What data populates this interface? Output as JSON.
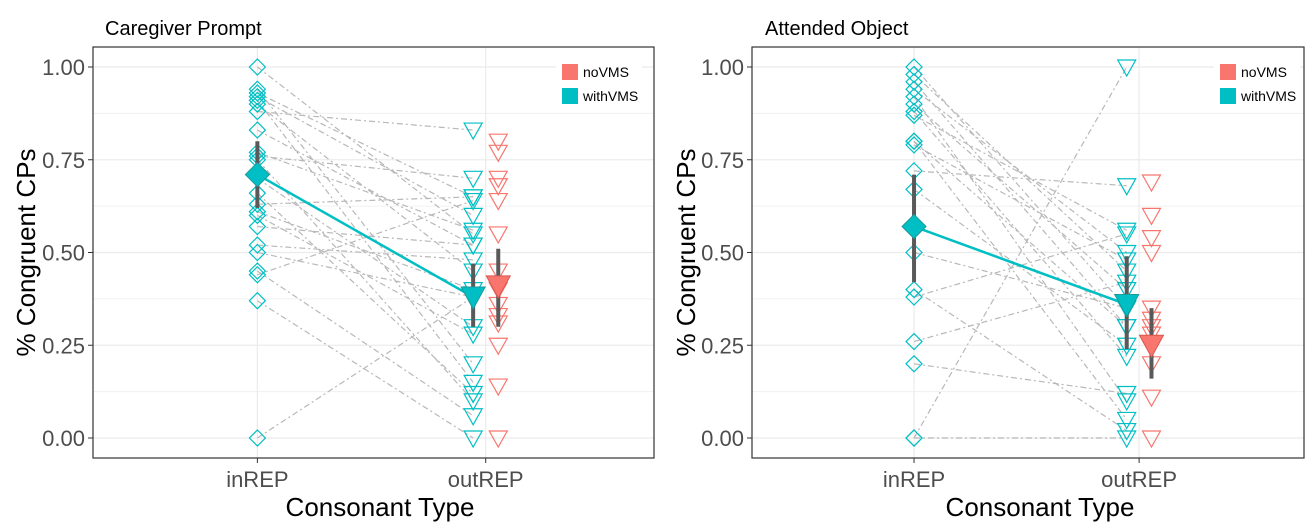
{
  "chart_data": [
    {
      "type": "scatter",
      "title": "Caregiver Prompt",
      "xlabel": "Consonant Type",
      "ylabel": "% Congruent CPs",
      "categories": [
        "inREP",
        "outREP"
      ],
      "ylim": [
        0,
        1
      ],
      "yticks": [
        "0.00",
        "0.25",
        "0.50",
        "0.75",
        "1.00"
      ],
      "legend": {
        "position": "top-right",
        "entries": [
          {
            "name": "noVMS",
            "color": "#F8766D"
          },
          {
            "name": "withVMS",
            "color": "#00BFC4"
          }
        ]
      },
      "pairs": [
        [
          0.0,
          0.38
        ],
        [
          1.0,
          0.55
        ],
        [
          0.94,
          0.2
        ],
        [
          0.93,
          0.65
        ],
        [
          0.92,
          0.6
        ],
        [
          0.91,
          0.15
        ],
        [
          0.9,
          0.45
        ],
        [
          0.88,
          0.83
        ],
        [
          0.83,
          0.52
        ],
        [
          0.77,
          0.56
        ],
        [
          0.76,
          0.7
        ],
        [
          0.75,
          0.1
        ],
        [
          0.7,
          0.3
        ],
        [
          0.66,
          0.12
        ],
        [
          0.63,
          0.65
        ],
        [
          0.61,
          0.4
        ],
        [
          0.57,
          0.52
        ],
        [
          0.52,
          0.48
        ],
        [
          0.5,
          0.38
        ],
        [
          0.44,
          0.64
        ],
        [
          0.37,
          0.0
        ],
        [
          0.45,
          0.06
        ],
        [
          0.6,
          0.28
        ]
      ],
      "outREP_noVMS": [
        0.8,
        0.77,
        0.7,
        0.68,
        0.64,
        0.55,
        0.45,
        0.4,
        0.36,
        0.33,
        0.31,
        0.25,
        0.14,
        0.0
      ],
      "summary": {
        "withVMS_inREP": {
          "mean": 0.71,
          "lo": 0.62,
          "hi": 0.8
        },
        "withVMS_outREP": {
          "mean": 0.38,
          "lo": 0.3,
          "hi": 0.47
        },
        "noVMS_outREP": {
          "mean": 0.41,
          "lo": 0.3,
          "hi": 0.51
        }
      }
    },
    {
      "type": "scatter",
      "title": "Attended Object",
      "xlabel": "Consonant Type",
      "ylabel": "% Congruent CPs",
      "categories": [
        "inREP",
        "outREP"
      ],
      "ylim": [
        0,
        1
      ],
      "yticks": [
        "0.00",
        "0.25",
        "0.50",
        "0.75",
        "1.00"
      ],
      "legend": {
        "position": "top-right",
        "entries": [
          {
            "name": "noVMS",
            "color": "#F8766D"
          },
          {
            "name": "withVMS",
            "color": "#00BFC4"
          }
        ]
      },
      "pairs": [
        [
          0.0,
          1.0
        ],
        [
          0.0,
          0.0
        ],
        [
          1.0,
          0.35
        ],
        [
          0.98,
          0.45
        ],
        [
          0.96,
          0.3
        ],
        [
          0.94,
          0.5
        ],
        [
          0.92,
          0.1
        ],
        [
          0.9,
          0.4
        ],
        [
          0.88,
          0.22
        ],
        [
          0.87,
          0.56
        ],
        [
          0.8,
          0.05
        ],
        [
          0.79,
          0.48
        ],
        [
          0.72,
          0.68
        ],
        [
          0.67,
          0.25
        ],
        [
          0.5,
          0.35
        ],
        [
          0.4,
          0.02
        ],
        [
          0.38,
          0.55
        ],
        [
          0.26,
          0.42
        ],
        [
          0.2,
          0.12
        ],
        [
          0.8,
          0.3
        ]
      ],
      "outREP_noVMS": [
        0.69,
        0.6,
        0.54,
        0.5,
        0.35,
        0.32,
        0.3,
        0.28,
        0.25,
        0.2,
        0.11,
        0.0
      ],
      "summary": {
        "withVMS_inREP": {
          "mean": 0.57,
          "lo": 0.42,
          "hi": 0.71
        },
        "withVMS_outREP": {
          "mean": 0.36,
          "lo": 0.24,
          "hi": 0.49
        },
        "noVMS_outREP": {
          "mean": 0.25,
          "lo": 0.16,
          "hi": 0.35
        }
      }
    }
  ]
}
